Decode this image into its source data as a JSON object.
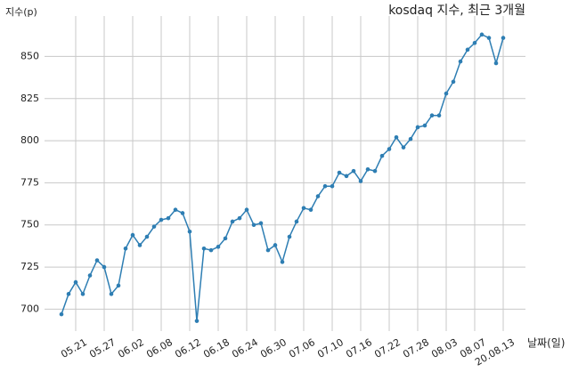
{
  "chart_data": {
    "type": "line",
    "title": "kosdaq 지수, 최근 3개월",
    "y_label": "지수(p)",
    "x_label": "날짜(일)",
    "categories": [
      null,
      null,
      "05.21",
      null,
      null,
      null,
      "05.27",
      null,
      null,
      null,
      "06.02",
      null,
      null,
      null,
      "06.08",
      null,
      null,
      null,
      "06.12",
      null,
      null,
      null,
      "06.18",
      null,
      null,
      null,
      "06.24",
      null,
      null,
      null,
      "06.30",
      null,
      null,
      null,
      "07.06",
      null,
      null,
      null,
      "07.10",
      null,
      null,
      null,
      "07.16",
      null,
      null,
      null,
      "07.22",
      null,
      null,
      null,
      "07.28",
      null,
      null,
      null,
      "08.03",
      null,
      null,
      null,
      "08.07",
      null,
      null,
      null,
      "20.08.13"
    ],
    "values": [
      697,
      709,
      716,
      709,
      720,
      729,
      725,
      709,
      714,
      736,
      744,
      738,
      743,
      749,
      753,
      754,
      759,
      757,
      746,
      693,
      736,
      735,
      737,
      742,
      752,
      754,
      759,
      750,
      751,
      735,
      738,
      728,
      743,
      752,
      760,
      759,
      767,
      773,
      773,
      781,
      779,
      782,
      776,
      783,
      782,
      791,
      795,
      802,
      796,
      801,
      808,
      809,
      815,
      815,
      828,
      835,
      847,
      854,
      858,
      863,
      861,
      846,
      861
    ],
    "color": "#2e7eb3",
    "ylim": [
      687,
      874
    ],
    "yticks": [
      700,
      725,
      750,
      775,
      800,
      825,
      850
    ],
    "grid": true
  }
}
